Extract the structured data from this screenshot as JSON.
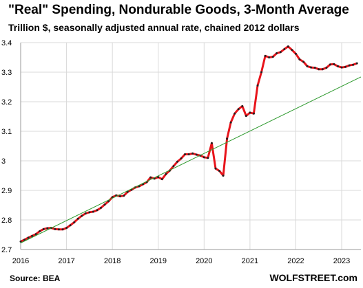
{
  "chart_data": {
    "type": "line",
    "title": "\"Real\" Spending, Nondurable Goods, 3-Month Average",
    "subtitle": "Trillion $, seasonally adjusted annual rate, chained 2012 dollars",
    "source": "Source: BEA",
    "brand": "WOLFSTREET.com",
    "xlabel": "",
    "ylabel": "",
    "xlim": [
      2016.0,
      2023.42
    ],
    "ylim": [
      2.7,
      3.4
    ],
    "grid": true,
    "legend": "none",
    "x_ticks": [
      2016,
      2017,
      2018,
      2019,
      2020,
      2021,
      2022,
      2023
    ],
    "x_tick_labels": [
      "2016",
      "2017",
      "2018",
      "2019",
      "2020",
      "2021",
      "2022",
      "2023"
    ],
    "y_ticks": [
      2.7,
      2.8,
      2.9,
      3.0,
      3.1,
      3.2,
      3.3,
      3.4
    ],
    "y_tick_labels": [
      "2.7",
      "2.8",
      "2.9",
      "3",
      "3.1",
      "3.2",
      "3.3",
      "3.4"
    ],
    "series": [
      {
        "color": "#e8141b",
        "marker_color": "#222222",
        "x": [
          2016.0,
          2016.083,
          2016.167,
          2016.25,
          2016.333,
          2016.417,
          2016.5,
          2016.583,
          2016.667,
          2016.75,
          2016.833,
          2016.917,
          2017.0,
          2017.083,
          2017.167,
          2017.25,
          2017.333,
          2017.417,
          2017.5,
          2017.583,
          2017.667,
          2017.75,
          2017.833,
          2017.917,
          2018.0,
          2018.083,
          2018.167,
          2018.25,
          2018.333,
          2018.417,
          2018.5,
          2018.583,
          2018.667,
          2018.75,
          2018.833,
          2018.917,
          2019.0,
          2019.083,
          2019.167,
          2019.25,
          2019.333,
          2019.417,
          2019.5,
          2019.583,
          2019.667,
          2019.75,
          2019.833,
          2019.917,
          2020.0,
          2020.083,
          2020.167,
          2020.25,
          2020.333,
          2020.417,
          2020.5,
          2020.583,
          2020.667,
          2020.75,
          2020.833,
          2020.917,
          2021.0,
          2021.083,
          2021.167,
          2021.25,
          2021.333,
          2021.417,
          2021.5,
          2021.583,
          2021.667,
          2021.75,
          2021.833,
          2021.917,
          2022.0,
          2022.083,
          2022.167,
          2022.25,
          2022.333,
          2022.417,
          2022.5,
          2022.583,
          2022.667,
          2022.75,
          2022.833,
          2022.917,
          2023.0,
          2023.083,
          2023.167,
          2023.25,
          2023.333
        ],
        "values": [
          2.727,
          2.733,
          2.74,
          2.746,
          2.752,
          2.762,
          2.769,
          2.772,
          2.773,
          2.769,
          2.768,
          2.768,
          2.773,
          2.782,
          2.792,
          2.804,
          2.814,
          2.822,
          2.826,
          2.828,
          2.833,
          2.841,
          2.852,
          2.863,
          2.877,
          2.883,
          2.88,
          2.882,
          2.895,
          2.902,
          2.91,
          2.914,
          2.921,
          2.928,
          2.944,
          2.94,
          2.945,
          2.938,
          2.955,
          2.967,
          2.982,
          2.997,
          3.008,
          3.022,
          3.022,
          3.025,
          3.021,
          3.018,
          3.012,
          3.01,
          3.06,
          2.974,
          2.966,
          2.95,
          3.075,
          3.13,
          3.16,
          3.175,
          3.185,
          3.152,
          3.163,
          3.16,
          3.255,
          3.3,
          3.355,
          3.35,
          3.352,
          3.364,
          3.368,
          3.378,
          3.387,
          3.375,
          3.362,
          3.343,
          3.335,
          3.32,
          3.316,
          3.315,
          3.31,
          3.31,
          3.315,
          3.326,
          3.327,
          3.32,
          3.316,
          3.318,
          3.323,
          3.325,
          3.33
        ]
      },
      {
        "color": "#2e9a2e",
        "type": "trendline",
        "x": [
          2016.0,
          2023.42
        ],
        "values": [
          2.722,
          3.284
        ]
      }
    ]
  }
}
